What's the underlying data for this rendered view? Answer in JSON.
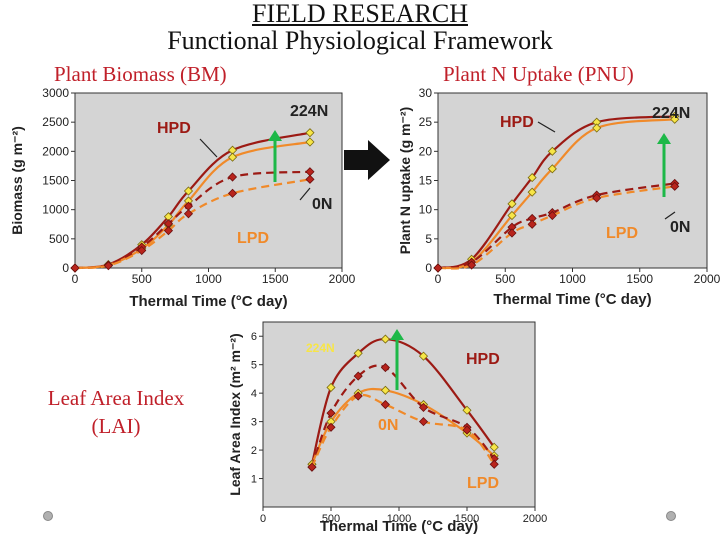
{
  "title": "FIELD RESEARCH",
  "subtitle": "Functional Physiological Framework",
  "labels": {
    "bm": "Plant Biomass (BM)",
    "pnu": "Plant N Uptake (PNU)",
    "lai_line1": "Leaf Area Index",
    "lai_line2": "(LAI)"
  },
  "colors": {
    "hpd": "#9c1a14",
    "lpd": "#f08a2a",
    "marker_light": "#f7e547",
    "marker_dark": "#b8241c",
    "arrow": "#1db848",
    "panel": "#d4d4d4",
    "label": "#c0202a"
  },
  "chart_data": [
    {
      "id": "bm",
      "type": "line",
      "ylabel": "Biomass (g m⁻²)",
      "xlabel": "Thermal Time (°C day)",
      "xlim": [
        0,
        2000
      ],
      "ylim": [
        0,
        3000
      ],
      "xticks": [
        0,
        500,
        1000,
        1500,
        2000
      ],
      "yticks": [
        0,
        500,
        1000,
        1500,
        2000,
        2500,
        3000
      ],
      "annotations": [
        "HPD",
        "224N",
        "0N",
        "LPD"
      ],
      "series": [
        {
          "name": "HPD 224N",
          "x": [
            0,
            250,
            500,
            700,
            850,
            1180,
            1760
          ],
          "y": [
            0,
            60,
            400,
            880,
            1320,
            2020,
            2320
          ]
        },
        {
          "name": "LPD 224N",
          "x": [
            0,
            250,
            500,
            700,
            850,
            1180,
            1760
          ],
          "y": [
            0,
            50,
            330,
            740,
            1150,
            1900,
            2160
          ]
        },
        {
          "name": "HPD 0N",
          "x": [
            0,
            250,
            500,
            700,
            850,
            1180,
            1760
          ],
          "y": [
            0,
            50,
            360,
            760,
            1060,
            1560,
            1650
          ]
        },
        {
          "name": "LPD 0N",
          "x": [
            0,
            250,
            500,
            700,
            850,
            1180,
            1760
          ],
          "y": [
            0,
            40,
            300,
            640,
            930,
            1280,
            1520
          ]
        }
      ]
    },
    {
      "id": "pnu",
      "type": "line",
      "ylabel": "Plant N uptake (g m⁻²)",
      "xlabel": "Thermal Time (°C day)",
      "xlim": [
        0,
        2000
      ],
      "ylim": [
        0,
        30
      ],
      "xticks": [
        0,
        500,
        1000,
        1500,
        2000
      ],
      "yticks": [
        0,
        5,
        10,
        15,
        20,
        25,
        30
      ],
      "annotations": [
        "HPD",
        "224N",
        "0N",
        "LPD"
      ],
      "series": [
        {
          "name": "HPD 224N",
          "x": [
            0,
            250,
            550,
            700,
            850,
            1180,
            1760
          ],
          "y": [
            0,
            1.5,
            11,
            15.5,
            20,
            25,
            26
          ]
        },
        {
          "name": "LPD 224N",
          "x": [
            0,
            250,
            550,
            700,
            850,
            1180,
            1760
          ],
          "y": [
            0,
            1,
            9,
            13,
            17,
            24,
            25.5
          ]
        },
        {
          "name": "HPD 0N",
          "x": [
            0,
            250,
            550,
            700,
            850,
            1180,
            1760
          ],
          "y": [
            0,
            1,
            7,
            8.5,
            9.5,
            12.5,
            14.5
          ]
        },
        {
          "name": "LPD 0N",
          "x": [
            0,
            250,
            550,
            700,
            850,
            1180,
            1760
          ],
          "y": [
            0,
            0.5,
            6,
            7.5,
            9,
            12,
            14
          ]
        }
      ]
    },
    {
      "id": "lai",
      "type": "line",
      "ylabel": "Leaf Area Index (m² m⁻²)",
      "xlabel": "Thermal Time (°C day)",
      "xlim": [
        0,
        2000
      ],
      "ylim": [
        0,
        6.5
      ],
      "xticks": [
        0,
        500,
        1000,
        1500,
        2000
      ],
      "yticks": [
        1,
        2,
        3,
        4,
        5,
        6
      ],
      "annotations": [
        "224N",
        "HPD",
        "0N",
        "LPD"
      ],
      "series": [
        {
          "name": "HPD 224N",
          "x": [
            360,
            500,
            700,
            900,
            1180,
            1500,
            1700
          ],
          "y": [
            1.5,
            4.2,
            5.4,
            5.9,
            5.3,
            3.4,
            2.1
          ]
        },
        {
          "name": "LPD 224N",
          "x": [
            360,
            500,
            700,
            900,
            1180,
            1500,
            1700
          ],
          "y": [
            1.5,
            3.0,
            4.0,
            4.1,
            3.6,
            2.6,
            1.8
          ]
        },
        {
          "name": "HPD 0N",
          "x": [
            360,
            500,
            700,
            900,
            1180,
            1500,
            1700
          ],
          "y": [
            1.4,
            3.3,
            4.6,
            4.9,
            3.5,
            2.8,
            1.7
          ]
        },
        {
          "name": "LPD 0N",
          "x": [
            360,
            500,
            700,
            900,
            1180,
            1500,
            1700
          ],
          "y": [
            1.4,
            2.8,
            3.9,
            3.6,
            3.0,
            2.7,
            1.5
          ]
        }
      ]
    }
  ]
}
